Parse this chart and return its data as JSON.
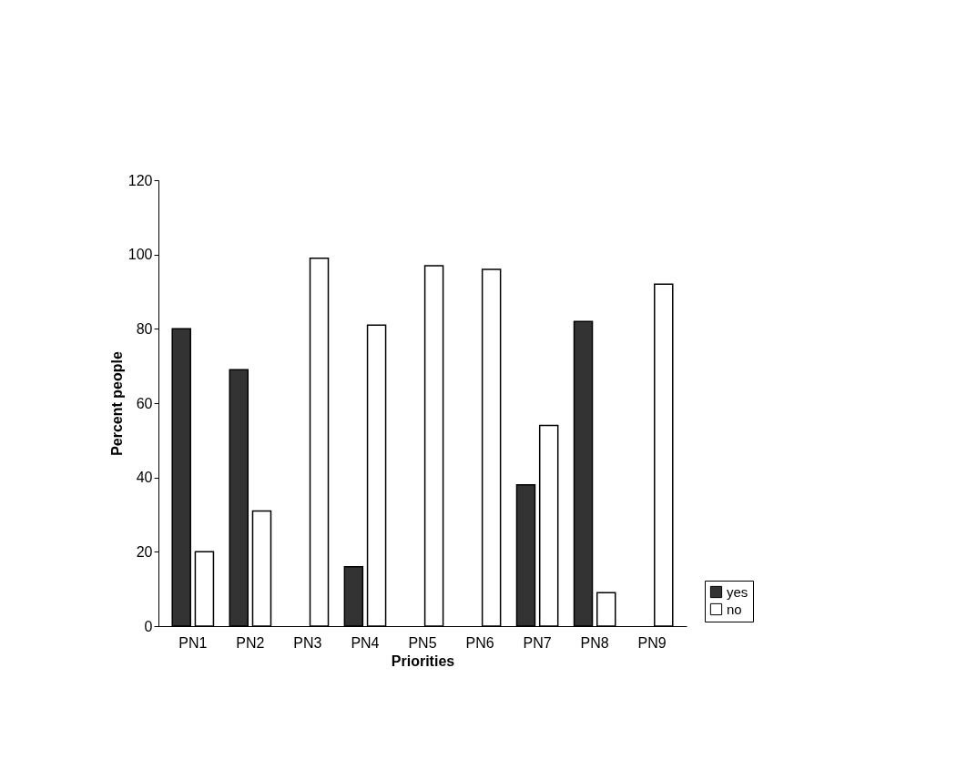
{
  "chart_data": {
    "type": "bar",
    "xlabel": "Priorities",
    "ylabel": "Percent people",
    "categories": [
      "PN1",
      "PN2",
      "PN3",
      "PN4",
      "PN5",
      "PN6",
      "PN7",
      "PN8",
      "PN9"
    ],
    "series": [
      {
        "name": "yes",
        "color": "#333333",
        "values": [
          80,
          69,
          null,
          16,
          null,
          null,
          38,
          82,
          null
        ]
      },
      {
        "name": "no",
        "color": "#ffffff",
        "values": [
          20,
          31,
          99,
          81,
          97,
          96,
          54,
          9,
          92
        ]
      }
    ],
    "ylim": [
      0,
      120
    ],
    "yticks": [
      0,
      20,
      40,
      60,
      80,
      100,
      120
    ],
    "grid": false,
    "legend": "bottom right"
  }
}
